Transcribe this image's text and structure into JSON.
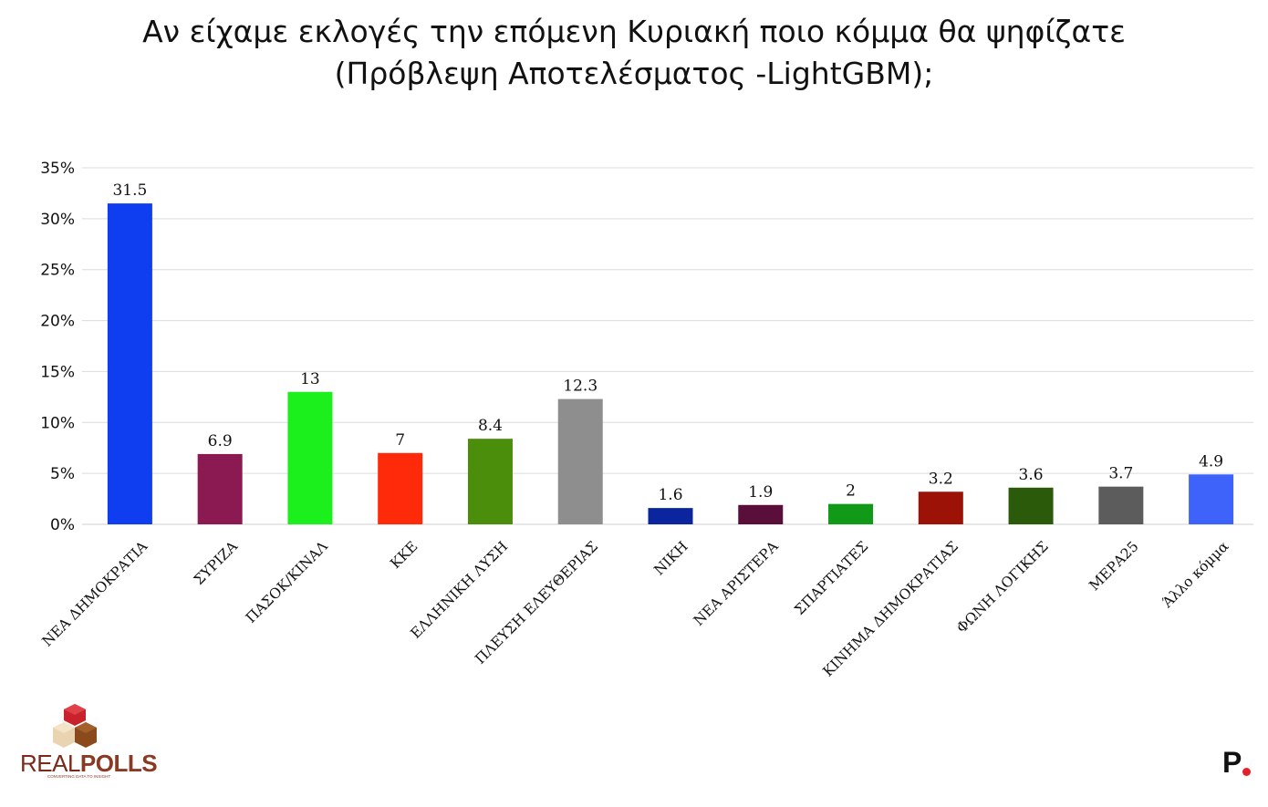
{
  "title": {
    "line1": "Αν είχαμε εκλογές την επόμενη Κυριακή ποιο κόμμα θα ψηφίζατε",
    "line2": "(Πρόβλεψη Αποτελέσματος -LightGBM);"
  },
  "chart_data": {
    "type": "bar",
    "title": "Αν είχαμε εκλογές την επόμενη Κυριακή ποιο κόμμα θα ψηφίζατε (Πρόβλεψη Αποτελέσματος -LightGBM);",
    "categories": [
      "ΝΕΑ ΔΗΜΟΚΡΑΤΙΑ",
      "ΣΥΡΙΖΑ",
      "ΠΑΣΟΚ/ΚΙΝΑΛ",
      "ΚΚΕ",
      "ΕΛΛΗΝΙΚΗ ΛΥΣΗ",
      "ΠΛΕΥΣΗ ΕΛΕΥΘΕΡΙΑΣ",
      "ΝΙΚΗ",
      "ΝΕΑ ΑΡΙΣΤΕΡΑ",
      "ΣΠΑΡΤΙΑΤΕΣ",
      "ΚΙΝΗΜΑ ΔΗΜΟΚΡΑΤΙΑΣ",
      "ΦΩΝΗ ΛΟΓΙΚΗΣ",
      "ΜΕΡΑ25",
      "Άλλο κόμμα"
    ],
    "values": [
      31.5,
      6.9,
      13,
      7,
      8.4,
      12.3,
      1.6,
      1.9,
      2,
      3.2,
      3.6,
      3.7,
      4.9
    ],
    "value_labels": [
      "31.5",
      "6.9",
      "13",
      "7",
      "8.4",
      "12.3",
      "1.6",
      "1.9",
      "2",
      "3.2",
      "3.6",
      "3.7",
      "4.9"
    ],
    "colors": [
      "#0f3ef0",
      "#8b1a52",
      "#1cf01c",
      "#fe2a0a",
      "#4a8e0c",
      "#8e8e8e",
      "#0a259e",
      "#5a0f3a",
      "#119a18",
      "#9c1206",
      "#2a5a0a",
      "#5c5c5c",
      "#3d63fb"
    ],
    "y_ticks": [
      "0%",
      "5%",
      "10%",
      "15%",
      "20%",
      "25%",
      "30%",
      "35%"
    ],
    "ylim": [
      0,
      35
    ],
    "xlabel": "",
    "ylabel": "",
    "grid": true,
    "legend": "none"
  },
  "branding": {
    "logo_text_light": "REAL",
    "logo_text_bold": "POLLS",
    "logo_tagline": "CONVERTING DATA TO INSIGHT",
    "logo_icon": "cube-stack-icon",
    "publisher_mark": "P",
    "publisher_dot_color": "#e4202a"
  }
}
